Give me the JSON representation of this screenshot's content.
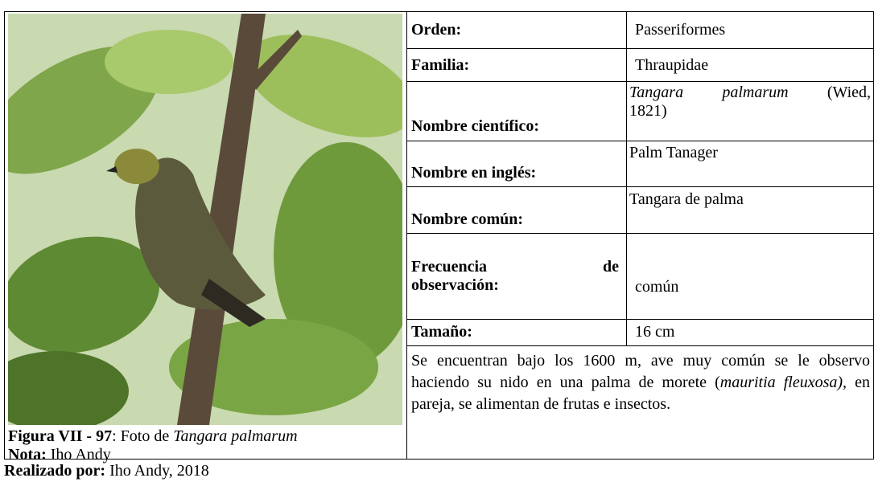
{
  "figure": {
    "number": "Figura VII - 97",
    "caption_text": ": Foto de ",
    "caption_species": "Tangara palmarum",
    "note_label": "Nota:",
    "note_value": "Iho Andy"
  },
  "rows": [
    {
      "label": "Orden:",
      "value": "Passeriformes"
    },
    {
      "label": "Familia:",
      "value": "Thraupidae"
    },
    {
      "label": "Nombre científico:",
      "value_italic": "Tangara palmarum",
      "value": "(Wied,",
      "value_line2": "1821)"
    },
    {
      "label": "Nombre en inglés:",
      "value": "Palm Tanager"
    },
    {
      "label": "Nombre común:",
      "value": "Tangara de palma"
    },
    {
      "label": "Frecuencia de",
      "label_line2": "observación:",
      "value": "común"
    },
    {
      "label": "Tamaño:",
      "value": "16 cm"
    }
  ],
  "description": {
    "text_1": "Se encuentran bajo los 1600 m, ave muy común se le observo haciendo su nido en una palma de morete (",
    "italic": "mauritia fleuxosa),",
    "text_2": " en pareja, se alimentan de frutas e insectos."
  },
  "footer": {
    "label": "Realizado por:",
    "value": "Iho Andy, 2018"
  }
}
